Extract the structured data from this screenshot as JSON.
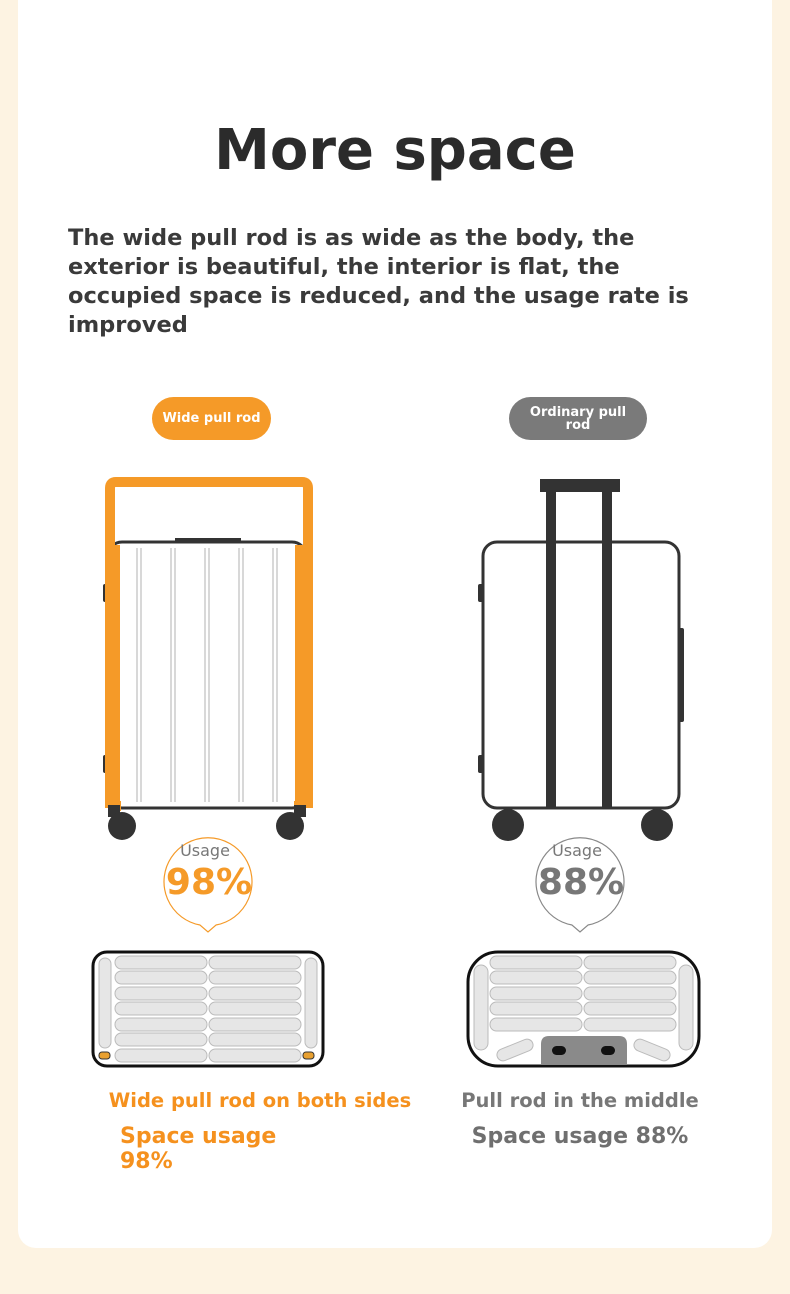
{
  "title": "More space",
  "description": "The wide pull rod is as wide as the body, the exterior is beautiful, the interior is flat, the occupied space is reduced, and the usage rate is improved",
  "colors": {
    "accent": "#f59a28",
    "neutral": "#7a7a7a",
    "outline": "#333333",
    "background": "#fdf3e2"
  },
  "left": {
    "badge": "Wide pull rod",
    "usage_label": "Usage",
    "usage_value": "98%",
    "usage_percent": 98,
    "caption": "Wide pull rod on both sides",
    "space_usage": "Space usage 98%"
  },
  "right": {
    "badge": "Ordinary pull rod",
    "usage_label": "Usage",
    "usage_value": "88%",
    "usage_percent": 88,
    "caption": "Pull rod in the middle",
    "space_usage": "Space usage 88%"
  }
}
